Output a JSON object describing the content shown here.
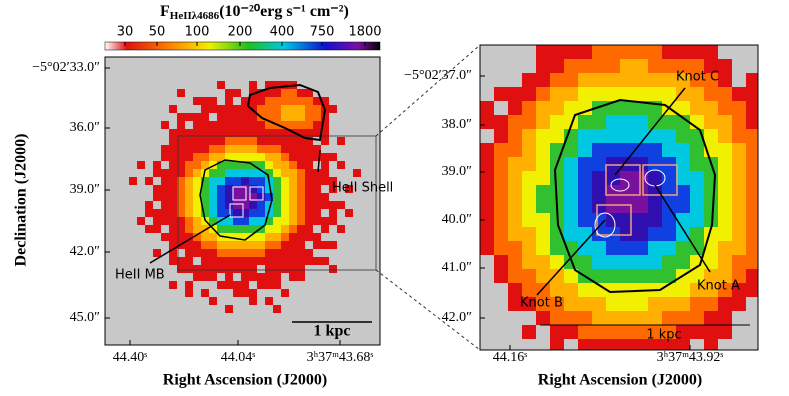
{
  "colorbar": {
    "title_main": "F",
    "title_subscript": "HeIIλ4686",
    "title_units": "(10⁻²⁰erg s⁻¹ cm⁻²)",
    "ticks": [
      "30",
      "50",
      "100",
      "200",
      "400",
      "750",
      "1800"
    ]
  },
  "left_panel": {
    "y_label": "Declination (J2000)",
    "x_label": "Right Ascension (J2000)",
    "yticks": [
      "−5°02′33.0″",
      "36.0″",
      "39.0″",
      "42.0″",
      "45.0″"
    ],
    "xticks": [
      "44.40ˢ",
      "44.04ˢ",
      "3ʰ37ᵐ43.68ˢ"
    ],
    "annotations": [
      "HeII Shell",
      "HeII MB"
    ],
    "scale_bar": "1 kpc"
  },
  "right_panel": {
    "x_label": "Right Ascension (J2000)",
    "yticks": [
      "−5°02′37.0″",
      "38.0″",
      "39.0″",
      "40.0″",
      "41.0″",
      "42.0″"
    ],
    "xticks": [
      "44.16ˢ",
      "3ʰ37ᵐ43.92ˢ"
    ],
    "annotations": [
      "Knot C",
      "Knot A",
      "Knot B"
    ],
    "scale_bar": "1 kpc"
  }
}
